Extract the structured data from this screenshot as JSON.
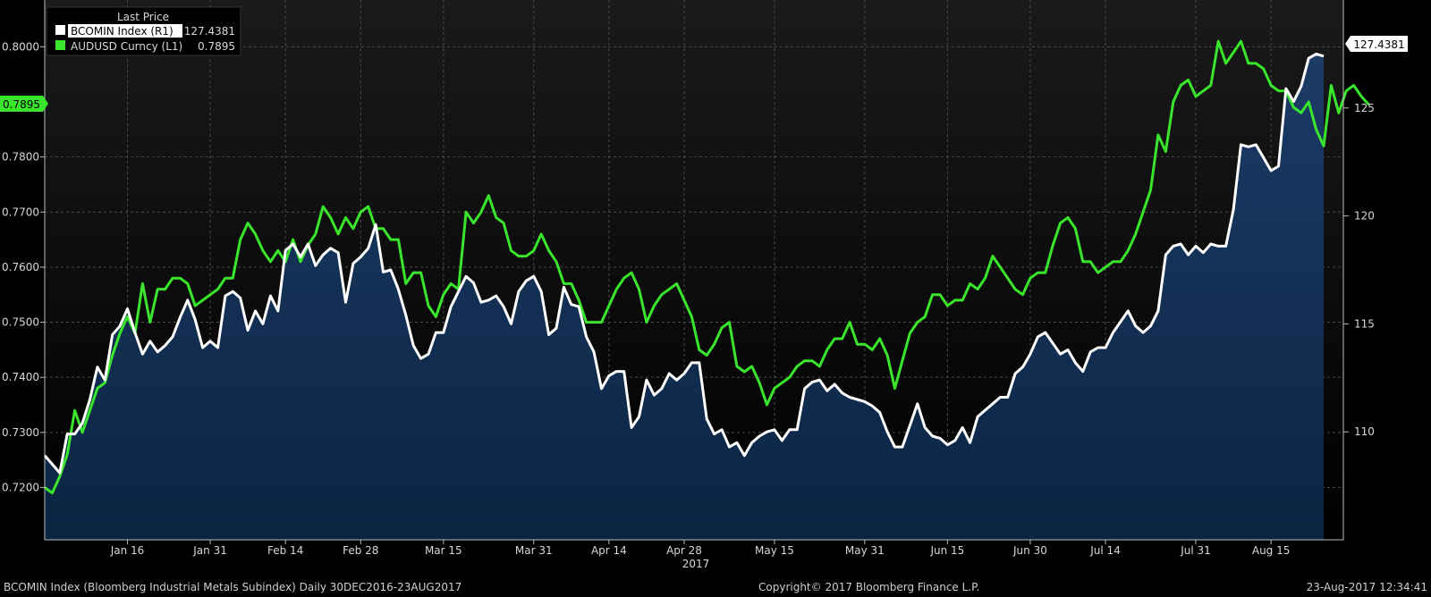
{
  "chart_data": {
    "type": "line",
    "legend": {
      "title": "Last Price",
      "position": "top-left",
      "entries": [
        {
          "label": "BCOMIN Index  (R1)",
          "value": "127.4381",
          "color": "#ffffff"
        },
        {
          "label": "AUDUSD Curncy  (L1)",
          "value": "0.7895",
          "color": "#39e62c"
        }
      ]
    },
    "x_ticks": [
      "Jan 16",
      "Jan 31",
      "Feb 14",
      "Feb 28",
      "Mar 15",
      "Mar 31",
      "Apr 14",
      "Apr 28",
      "May 15",
      "May 31",
      "Jun 15",
      "Jun 30",
      "Jul 14",
      "Jul 31",
      "Aug 15"
    ],
    "x_year": "2017",
    "left_axis": {
      "ticks": [
        "0.8000",
        "0.7800",
        "0.7700",
        "0.7600",
        "0.7500",
        "0.7400",
        "0.7300",
        "0.7200"
      ],
      "range": [
        0.7105,
        0.8085
      ],
      "last_value": "0.7895"
    },
    "right_axis": {
      "ticks": [
        "125",
        "120",
        "115",
        "110"
      ],
      "range": [
        105.0,
        130.0
      ],
      "last_value": "127.4381"
    },
    "series": [
      {
        "name": "BCOMIN Index",
        "axis": "right",
        "color": "#ffffff",
        "fill": "#0e2a4d",
        "values": [
          108.9,
          108.5,
          108.1,
          109.9,
          109.9,
          110.4,
          111.5,
          113.0,
          112.4,
          114.5,
          114.9,
          115.7,
          114.6,
          113.6,
          114.2,
          113.7,
          114.0,
          114.4,
          115.3,
          116.1,
          115.2,
          113.9,
          114.2,
          113.9,
          116.3,
          116.5,
          116.2,
          114.7,
          115.6,
          115.0,
          116.3,
          115.6,
          118.4,
          118.7,
          118.1,
          118.7,
          117.7,
          118.2,
          118.5,
          118.3,
          116.0,
          117.8,
          118.1,
          118.5,
          119.6,
          117.4,
          117.5,
          116.6,
          115.4,
          114.0,
          113.4,
          113.6,
          114.6,
          114.6,
          115.8,
          116.5,
          117.2,
          116.9,
          116.0,
          116.1,
          116.3,
          115.8,
          115.0,
          116.5,
          117.0,
          117.2,
          116.5,
          114.5,
          114.8,
          116.7,
          115.9,
          115.8,
          114.4,
          113.7,
          112.0,
          112.6,
          112.8,
          112.8,
          110.2,
          110.7,
          112.4,
          111.7,
          112.0,
          112.7,
          112.4,
          112.7,
          113.2,
          113.2,
          110.6,
          109.9,
          110.1,
          109.3,
          109.5,
          108.9,
          109.5,
          109.8,
          110.0,
          110.1,
          109.6,
          110.1,
          110.1,
          112.0,
          112.3,
          112.4,
          111.9,
          112.2,
          111.8,
          111.6,
          111.5,
          111.4,
          111.2,
          110.9,
          110.0,
          109.3,
          109.3,
          110.3,
          111.3,
          110.2,
          109.8,
          109.7,
          109.4,
          109.6,
          110.2,
          109.5,
          110.7,
          111.0,
          111.3,
          111.6,
          111.6,
          112.7,
          113.0,
          113.6,
          114.4,
          114.6,
          114.1,
          113.6,
          113.8,
          113.2,
          112.8,
          113.7,
          113.9,
          113.9,
          114.6,
          115.1,
          115.6,
          114.9,
          114.6,
          114.9,
          115.6,
          118.2,
          118.6,
          118.7,
          118.2,
          118.6,
          118.3,
          118.7,
          118.6,
          118.6,
          120.3,
          123.3,
          123.2,
          123.3,
          122.7,
          122.1,
          122.3,
          125.9,
          125.3,
          126.0,
          127.3,
          127.5,
          127.4
        ]
      },
      {
        "name": "AUDUSD Curncy",
        "axis": "left",
        "color": "#39e62c",
        "values": [
          0.72,
          0.719,
          0.722,
          0.726,
          0.734,
          0.73,
          0.734,
          0.738,
          0.739,
          0.744,
          0.748,
          0.751,
          0.748,
          0.757,
          0.75,
          0.756,
          0.756,
          0.758,
          0.758,
          0.757,
          0.753,
          0.754,
          0.755,
          0.756,
          0.758,
          0.758,
          0.765,
          0.768,
          0.766,
          0.763,
          0.761,
          0.763,
          0.761,
          0.765,
          0.761,
          0.764,
          0.766,
          0.771,
          0.769,
          0.766,
          0.769,
          0.767,
          0.77,
          0.771,
          0.767,
          0.767,
          0.765,
          0.765,
          0.757,
          0.759,
          0.759,
          0.753,
          0.751,
          0.755,
          0.757,
          0.756,
          0.77,
          0.768,
          0.77,
          0.773,
          0.769,
          0.768,
          0.763,
          0.762,
          0.762,
          0.763,
          0.766,
          0.763,
          0.761,
          0.757,
          0.757,
          0.754,
          0.75,
          0.75,
          0.75,
          0.753,
          0.756,
          0.758,
          0.759,
          0.756,
          0.75,
          0.753,
          0.755,
          0.756,
          0.757,
          0.754,
          0.751,
          0.745,
          0.744,
          0.746,
          0.749,
          0.75,
          0.742,
          0.741,
          0.742,
          0.739,
          0.735,
          0.738,
          0.739,
          0.74,
          0.742,
          0.743,
          0.743,
          0.742,
          0.745,
          0.747,
          0.747,
          0.75,
          0.746,
          0.746,
          0.745,
          0.747,
          0.744,
          0.738,
          0.743,
          0.748,
          0.75,
          0.751,
          0.755,
          0.755,
          0.753,
          0.754,
          0.754,
          0.757,
          0.756,
          0.758,
          0.762,
          0.76,
          0.758,
          0.756,
          0.755,
          0.758,
          0.759,
          0.759,
          0.764,
          0.768,
          0.769,
          0.767,
          0.761,
          0.761,
          0.759,
          0.76,
          0.761,
          0.761,
          0.763,
          0.766,
          0.77,
          0.774,
          0.784,
          0.781,
          0.79,
          0.793,
          0.794,
          0.791,
          0.792,
          0.793,
          0.801,
          0.797,
          0.799,
          0.801,
          0.797,
          0.797,
          0.796,
          0.793,
          0.792,
          0.792,
          0.789,
          0.788,
          0.79,
          0.785,
          0.782,
          0.793,
          0.788,
          0.792,
          0.793,
          0.791,
          0.7895
        ]
      }
    ]
  },
  "footer": {
    "left": "BCOMIN Index (Bloomberg Industrial Metals Subindex)  Daily 30DEC2016-23AUG2017",
    "center": "Copyright© 2017 Bloomberg Finance L.P.",
    "right": "23-Aug-2017 12:34:41"
  }
}
